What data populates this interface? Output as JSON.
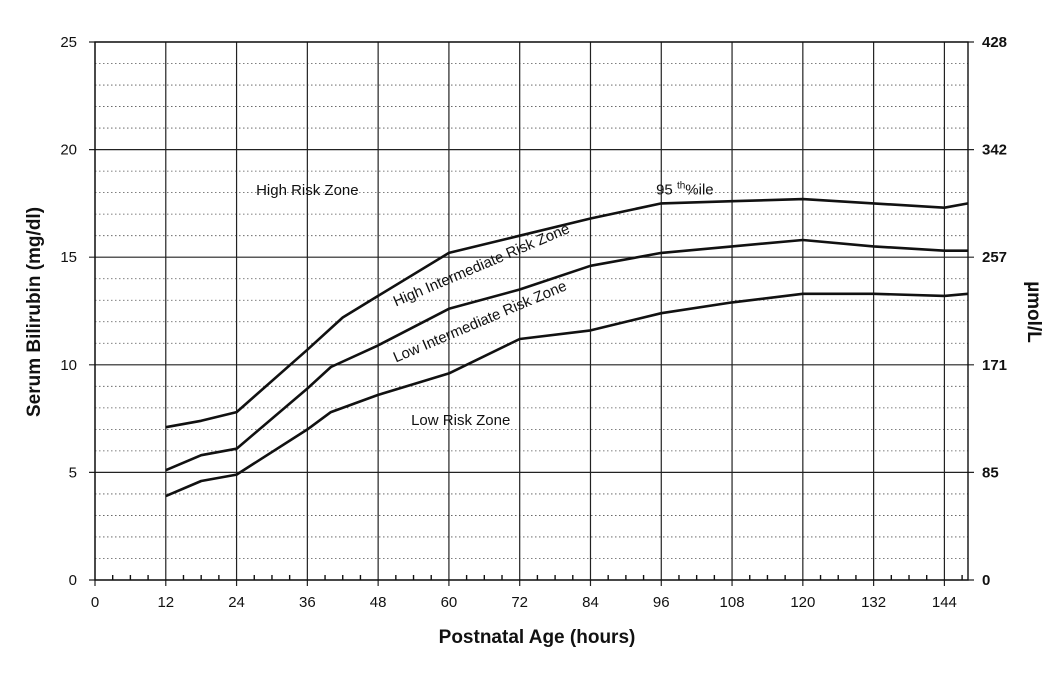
{
  "chart_data": {
    "type": "line",
    "xlabel": "Postnatal Age (hours)",
    "ylabel": "Serum Bilirubin (mg/dl)",
    "y2label": "µmol/L",
    "xlim": [
      0,
      148
    ],
    "ylim": [
      0,
      25
    ],
    "x_ticks": [
      0,
      12,
      24,
      36,
      48,
      60,
      72,
      84,
      96,
      108,
      120,
      132,
      144
    ],
    "y_ticks": [
      0,
      5,
      10,
      15,
      20,
      25
    ],
    "y2_ticks": [
      {
        "value": 0,
        "label": "0"
      },
      {
        "value": 5,
        "label": "85"
      },
      {
        "value": 10,
        "label": "171"
      },
      {
        "value": 15,
        "label": "257"
      },
      {
        "value": 20,
        "label": "342"
      },
      {
        "value": 25,
        "label": "428"
      }
    ],
    "grid": true,
    "series": [
      {
        "name": "95th%ile",
        "x": [
          12,
          18,
          24,
          36,
          42,
          48,
          60,
          72,
          84,
          96,
          108,
          120,
          132,
          144,
          148
        ],
        "y": [
          7.1,
          7.4,
          7.8,
          10.7,
          12.2,
          13.2,
          15.2,
          16.0,
          16.8,
          17.5,
          17.6,
          17.7,
          17.5,
          17.3,
          17.5
        ]
      },
      {
        "x": [
          12,
          18,
          24,
          36,
          40,
          48,
          60,
          72,
          84,
          96,
          108,
          120,
          132,
          144,
          148
        ],
        "y": [
          5.1,
          5.8,
          6.1,
          8.9,
          9.9,
          10.9,
          12.6,
          13.5,
          14.6,
          15.2,
          15.5,
          15.8,
          15.5,
          15.3,
          15.3
        ]
      },
      {
        "x": [
          12,
          18,
          24,
          36,
          40,
          48,
          60,
          72,
          84,
          96,
          108,
          120,
          132,
          144,
          148
        ],
        "y": [
          3.9,
          4.6,
          4.9,
          7.0,
          7.8,
          8.6,
          9.6,
          11.2,
          11.6,
          12.4,
          12.9,
          13.3,
          13.3,
          13.2,
          13.3
        ]
      }
    ],
    "annotations": [
      {
        "id": "high-risk",
        "text": "High Risk Zone",
        "x": 36,
        "y": 17.9,
        "rotate_with_series": false
      },
      {
        "id": "high-intermediate",
        "text": "High Intermediate Risk Zone",
        "x": 51,
        "y": 12.7,
        "rotate_with_series": true
      },
      {
        "id": "low-intermediate",
        "text": "Low Intermediate Risk Zone",
        "x": 51,
        "y": 10.1,
        "rotate_with_series": true
      },
      {
        "id": "low-risk",
        "text": "Low Risk Zone",
        "x": 62,
        "y": 7.2,
        "rotate_with_series": false
      }
    ],
    "percentile_label": {
      "prefix": "95 ",
      "sup": "th",
      "suffix": "%ile",
      "x": 100,
      "y": 17.5
    }
  }
}
